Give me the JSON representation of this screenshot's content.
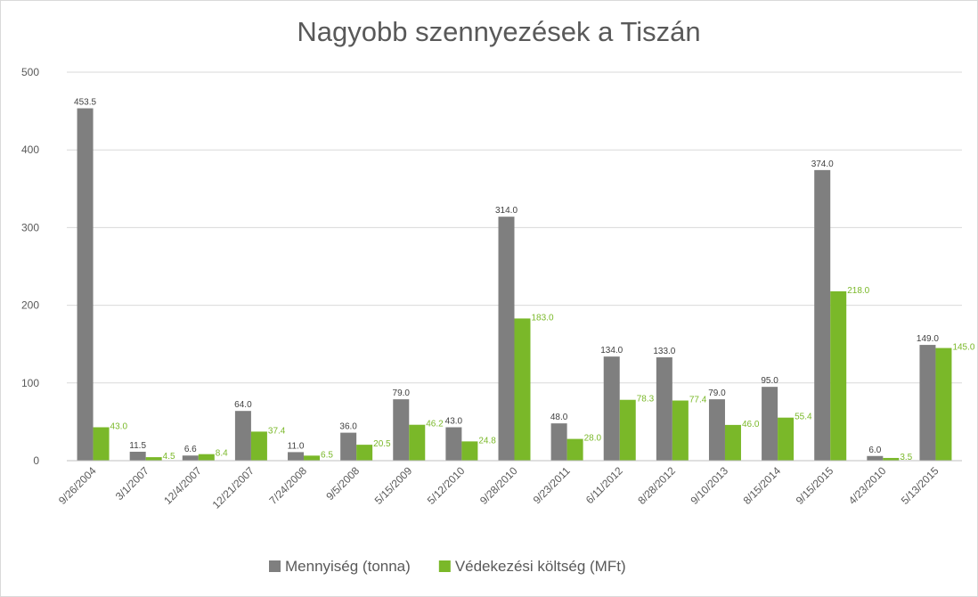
{
  "chart_data": {
    "type": "bar",
    "title": "Nagyobb szennyezések a Tiszán",
    "categories": [
      "9/26/2004",
      "3/1/2007",
      "12/4/2007",
      "12/21/2007",
      "7/24/2008",
      "9/5/2008",
      "5/15/2009",
      "5/12/2010",
      "9/28/2010",
      "9/23/2011",
      "6/11/2012",
      "8/28/2012",
      "9/10/2013",
      "8/15/2014",
      "9/15/2015",
      "4/23/2010",
      "5/13/2015"
    ],
    "series": [
      {
        "name": "Mennyiség (tonna)",
        "color": "#7f7f7f",
        "values": [
          453.5,
          11.5,
          6.6,
          64.0,
          11.0,
          36.0,
          79.0,
          43.0,
          314.0,
          48.0,
          134.0,
          133.0,
          79.0,
          95.0,
          374.0,
          6.0,
          149.0
        ],
        "value_labels": [
          "453.5",
          "11.5",
          "6.6",
          "64.0",
          "11.0",
          "36.0",
          "79.0",
          "43.0",
          "314.0",
          "48.0",
          "134.0",
          "133.0",
          "79.0",
          "95.0",
          "374.0",
          "6.0",
          "149.0"
        ]
      },
      {
        "name": "Védekezési költség (MFt)",
        "color": "#7ab829",
        "values": [
          43.0,
          4.5,
          8.4,
          37.4,
          6.5,
          20.5,
          46.2,
          24.8,
          183.0,
          28.0,
          78.3,
          77.4,
          46.0,
          55.4,
          218.0,
          3.5,
          145.0
        ],
        "value_labels": [
          "43.0",
          "4.5",
          "8.4",
          "37.4",
          "6.5",
          "20.5",
          "46.2",
          "24.8",
          "183.0",
          "28.0",
          "78.3",
          "77.4",
          "46.0",
          "55.4",
          "218.0",
          "3.5",
          "145.0"
        ]
      }
    ],
    "ylim": [
      0,
      500
    ],
    "yticks": [
      0,
      100,
      200,
      300,
      400,
      500
    ],
    "grid": true,
    "legend": "bottom"
  }
}
